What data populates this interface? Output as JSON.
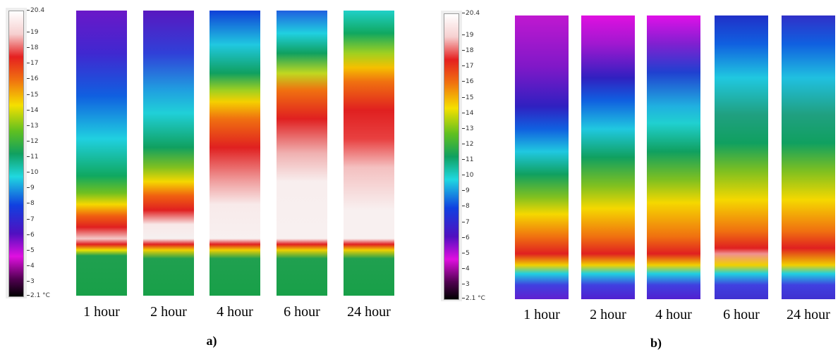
{
  "panels": [
    {
      "label": "a)",
      "scale": {
        "max": "20.4",
        "ticks": [
          "19",
          "18",
          "17",
          "16",
          "15",
          "14",
          "13",
          "12",
          "11",
          "10",
          "9",
          "8",
          "7",
          "6",
          "5",
          "4",
          "3"
        ],
        "min": "2.1 °C"
      },
      "captions": [
        "1 hour",
        "2 hour",
        "4 hour",
        "6 hour",
        "24 hour"
      ]
    },
    {
      "label": "b)",
      "scale": {
        "max": "20.4",
        "ticks": [
          "19",
          "18",
          "17",
          "16",
          "15",
          "14",
          "13",
          "12",
          "11",
          "10",
          "9",
          "8",
          "7",
          "6",
          "5",
          "4",
          "3"
        ],
        "min": "2.1 °C"
      },
      "captions": [
        "1 hour",
        "2 hour",
        "4 hour",
        "6 hour",
        "24 hour"
      ]
    }
  ]
}
